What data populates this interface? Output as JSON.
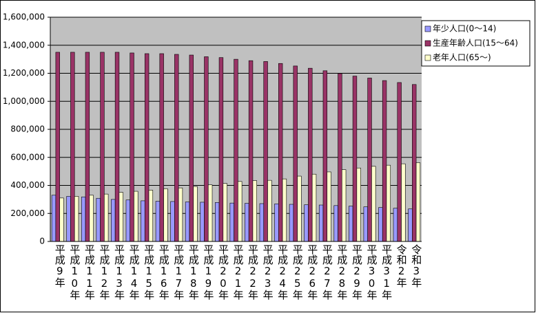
{
  "chart_data": {
    "type": "bar",
    "categories": [
      "平成9年",
      "平成10年",
      "平成11年",
      "平成12年",
      "平成13年",
      "平成14年",
      "平成15年",
      "平成16年",
      "平成17年",
      "平成18年",
      "平成19年",
      "平成20年",
      "平成21年",
      "平成22年",
      "平成23年",
      "平成24年",
      "平成25年",
      "平成26年",
      "平成27年",
      "平成28年",
      "平成29年",
      "平成30年",
      "平成31年",
      "令和2年",
      "令和3年"
    ],
    "series": [
      {
        "name": "年少人口(0～14)",
        "color": "#9999ff",
        "values": [
          330000,
          322000,
          318000,
          308000,
          300000,
          296000,
          290000,
          287000,
          285000,
          282000,
          280000,
          278000,
          274000,
          272000,
          270000,
          268000,
          265000,
          262000,
          260000,
          256000,
          252000,
          247000,
          242000,
          237000,
          232000
        ]
      },
      {
        "name": "生産年齢人口(15～64)",
        "color": "#993366",
        "values": [
          1350000,
          1350000,
          1350000,
          1350000,
          1350000,
          1345000,
          1340000,
          1340000,
          1335000,
          1330000,
          1318000,
          1312000,
          1300000,
          1290000,
          1284000,
          1270000,
          1252000,
          1236000,
          1218000,
          1198000,
          1180000,
          1166000,
          1148000,
          1134000,
          1120000
        ]
      },
      {
        "name": "老年人口(65～)",
        "color": "#ffffcc",
        "values": [
          310000,
          322000,
          330000,
          338000,
          350000,
          358000,
          366000,
          376000,
          382000,
          392000,
          404000,
          414000,
          428000,
          434000,
          436000,
          446000,
          466000,
          480000,
          496000,
          512000,
          524000,
          536000,
          544000,
          554000,
          562000
        ]
      }
    ],
    "ylim": [
      0,
      1600000
    ],
    "yticks": [
      0,
      {
        "value": 200000,
        "label": "200,000"
      },
      {
        "value": 400000,
        "label": "400,000"
      },
      {
        "value": 600000,
        "label": "600,000"
      },
      {
        "value": 800000,
        "label": "800,000"
      },
      {
        "value": 1000000,
        "label": "1,000,000"
      },
      {
        "value": 1200000,
        "label": "1,200,000"
      },
      {
        "value": 1400000,
        "label": "1,400,000"
      },
      {
        "value": 1600000,
        "label": "1,600,000"
      }
    ],
    "grid": true
  }
}
